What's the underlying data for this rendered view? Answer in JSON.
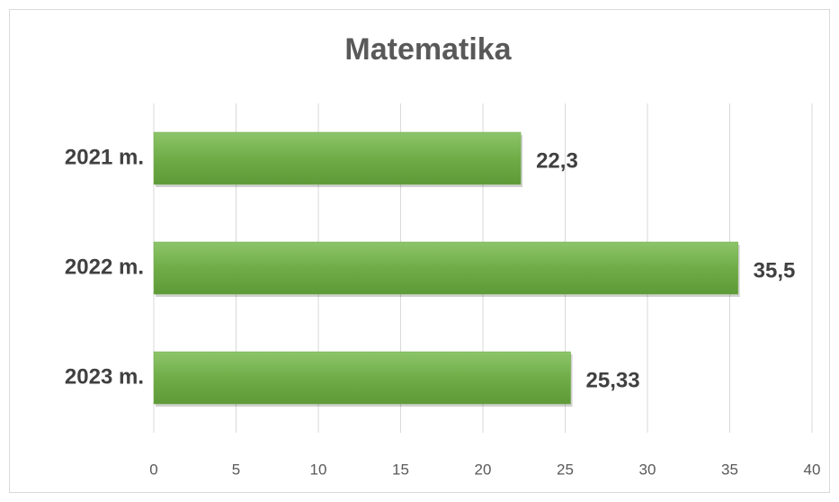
{
  "chart_data": {
    "type": "bar",
    "orientation": "horizontal",
    "title": "Matematika",
    "categories": [
      "2021 m.",
      "2022 m.",
      "2023 m."
    ],
    "values": [
      22.3,
      35.5,
      25.33
    ],
    "value_labels": [
      "22,3",
      "35,5",
      "25,33"
    ],
    "color": "#70ad47",
    "xlim": [
      0,
      40
    ],
    "xticks": [
      0,
      5,
      10,
      15,
      20,
      25,
      30,
      35,
      40
    ],
    "grid": true
  }
}
